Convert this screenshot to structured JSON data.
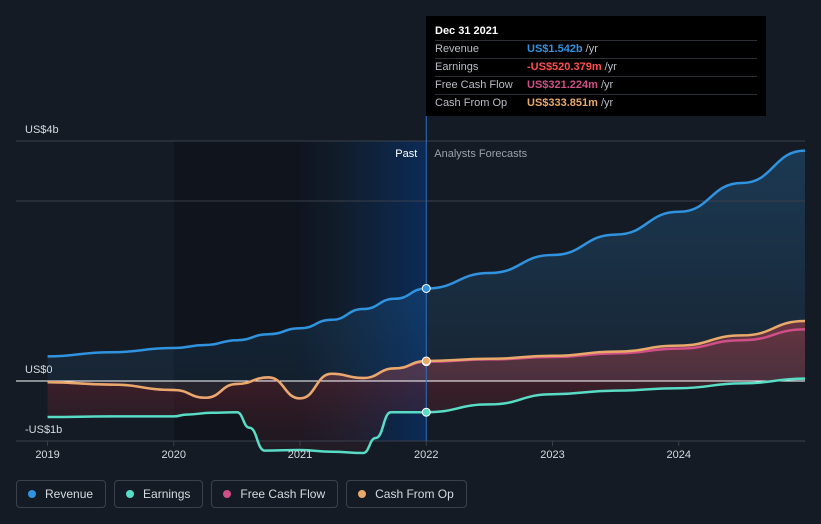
{
  "chart_data": {
    "type": "area",
    "y_axis": {
      "labels": [
        "US$4b",
        "US$0",
        "-US$1b"
      ],
      "ylim": [
        -1,
        4
      ]
    },
    "x_axis": {
      "ticks": [
        2019,
        2020,
        2021,
        2022,
        2023,
        2024
      ],
      "xlim": [
        2018.75,
        2025.0
      ]
    },
    "dividers": {
      "past_label": "Past",
      "forecast_label": "Analysts Forecasts",
      "split_x": 2022.0
    },
    "series": [
      {
        "name": "Revenue",
        "color": "#2f93e0",
        "x": [
          2019.0,
          2019.5,
          2020.0,
          2020.25,
          2020.5,
          2020.75,
          2021.0,
          2021.25,
          2021.5,
          2021.75,
          2022.0,
          2022.5,
          2023.0,
          2023.5,
          2024.0,
          2024.5,
          2025.0
        ],
        "y": [
          0.41,
          0.48,
          0.55,
          0.6,
          0.68,
          0.78,
          0.88,
          1.02,
          1.2,
          1.37,
          1.542,
          1.8,
          2.1,
          2.44,
          2.82,
          3.3,
          3.84
        ]
      },
      {
        "name": "Earnings",
        "color": "#58dcc6",
        "x": [
          2019.0,
          2019.5,
          2020.0,
          2020.1,
          2020.3,
          2020.5,
          2020.6,
          2020.72,
          2021.0,
          2021.25,
          2021.5,
          2021.6,
          2021.72,
          2022.0,
          2022.5,
          2023.0,
          2023.5,
          2024.0,
          2024.5,
          2025.0
        ],
        "y": [
          -0.6,
          -0.59,
          -0.59,
          -0.56,
          -0.53,
          -0.52,
          -0.78,
          -1.16,
          -1.15,
          -1.18,
          -1.2,
          -0.95,
          -0.52,
          -0.52,
          -0.39,
          -0.22,
          -0.16,
          -0.12,
          -0.04,
          0.04
        ]
      },
      {
        "name": "Free Cash Flow",
        "color": "#cf4f86",
        "x": [
          2019.0,
          2019.5,
          2020.0,
          2020.25,
          2020.5,
          2020.75,
          2021.0,
          2021.25,
          2021.5,
          2021.75,
          2022.0,
          2022.5,
          2023.0,
          2023.5,
          2024.0,
          2024.5,
          2025.0
        ],
        "y": [
          -0.02,
          -0.06,
          -0.15,
          -0.28,
          -0.05,
          0.06,
          -0.29,
          0.12,
          0.05,
          0.21,
          0.321,
          0.36,
          0.4,
          0.46,
          0.54,
          0.68,
          0.86
        ]
      },
      {
        "name": "Cash From Op",
        "color": "#e8a96a",
        "x": [
          2019.0,
          2019.5,
          2020.0,
          2020.25,
          2020.5,
          2020.75,
          2021.0,
          2021.25,
          2021.5,
          2021.75,
          2022.0,
          2022.5,
          2023.0,
          2023.5,
          2024.0,
          2024.5,
          2025.0
        ],
        "y": [
          -0.02,
          -0.06,
          -0.15,
          -0.28,
          -0.05,
          0.06,
          -0.29,
          0.12,
          0.05,
          0.21,
          0.334,
          0.37,
          0.42,
          0.49,
          0.59,
          0.76,
          1.0
        ]
      }
    ],
    "tooltip": {
      "date": "Dec 31 2021",
      "rows": [
        {
          "label": "Revenue",
          "value": "US$1.542b",
          "unit": "/yr",
          "color": "#2f93e0"
        },
        {
          "label": "Earnings",
          "value": "-US$520.379m",
          "unit": "/yr",
          "color": "#ff4e4e"
        },
        {
          "label": "Free Cash Flow",
          "value": "US$321.224m",
          "unit": "/yr",
          "color": "#cf4f86"
        },
        {
          "label": "Cash From Op",
          "value": "US$333.851m",
          "unit": "/yr",
          "color": "#e8a96a"
        }
      ]
    }
  },
  "legend": [
    {
      "label": "Revenue",
      "color": "#2f93e0"
    },
    {
      "label": "Earnings",
      "color": "#58dcc6"
    },
    {
      "label": "Free Cash Flow",
      "color": "#cf4f86"
    },
    {
      "label": "Cash From Op",
      "color": "#e8a96a"
    }
  ]
}
